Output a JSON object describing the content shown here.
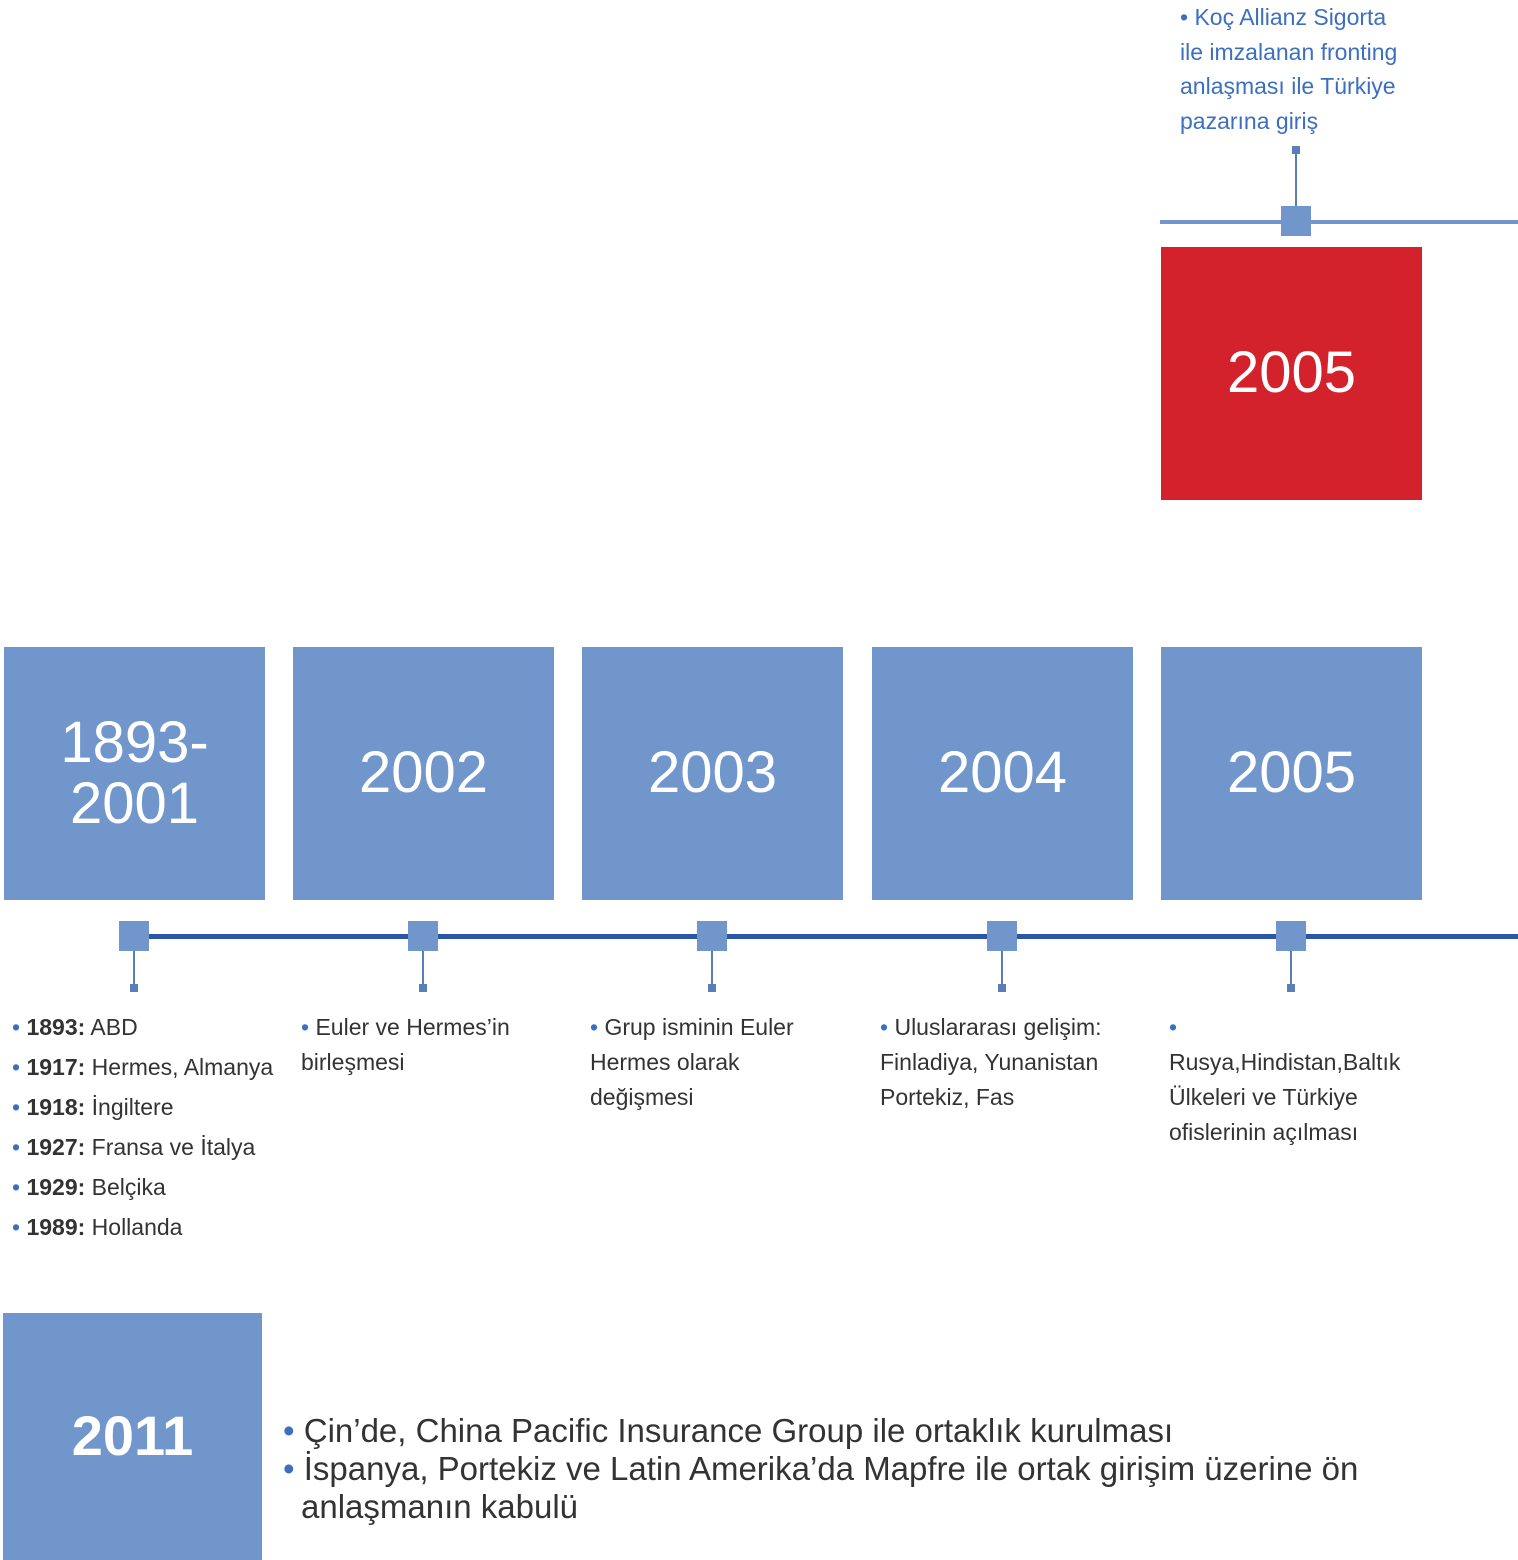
{
  "top_event": {
    "label": "2005",
    "text": "Koç Allianz Sigorta ile imzalanan fronting anlaşması ile Türkiye pazarına giriş"
  },
  "timeline": [
    {
      "label": "1893-2001",
      "items": [
        {
          "year": "1893:",
          "text": "ABD"
        },
        {
          "year": "1917:",
          "text": "Hermes, Almanya"
        },
        {
          "year": "1918:",
          "text": "İngiltere"
        },
        {
          "year": "1927:",
          "text": "Fransa ve İtalya"
        },
        {
          "year": "1929:",
          "text": "Belçika"
        },
        {
          "year": "1989:",
          "text": "Hollanda"
        }
      ]
    },
    {
      "label": "2002",
      "items": [
        {
          "text": "Euler ve Hermes’in birleşmesi"
        }
      ]
    },
    {
      "label": "2003",
      "items": [
        {
          "text": "Grup isminin Euler Hermes olarak değişmesi"
        }
      ]
    },
    {
      "label": "2004",
      "items": [
        {
          "text": "Uluslararası gelişim: Finladiya, Yunanistan Portekiz, Fas"
        }
      ]
    },
    {
      "label": "2005",
      "items": [
        {
          "text": "Rusya,Hindistan,Baltık Ülkeleri ve Türkiye ofislerinin açılması"
        }
      ]
    }
  ],
  "bottom_event": {
    "label": "2011",
    "items": [
      "Çin’de, China Pacific Insurance Group ile ortaklık kurulması",
      "İspanya, Portekiz ve Latin Amerika’da  Mapfre ile ortak girişim üzerine ön anlaşmanın kabulü"
    ]
  }
}
